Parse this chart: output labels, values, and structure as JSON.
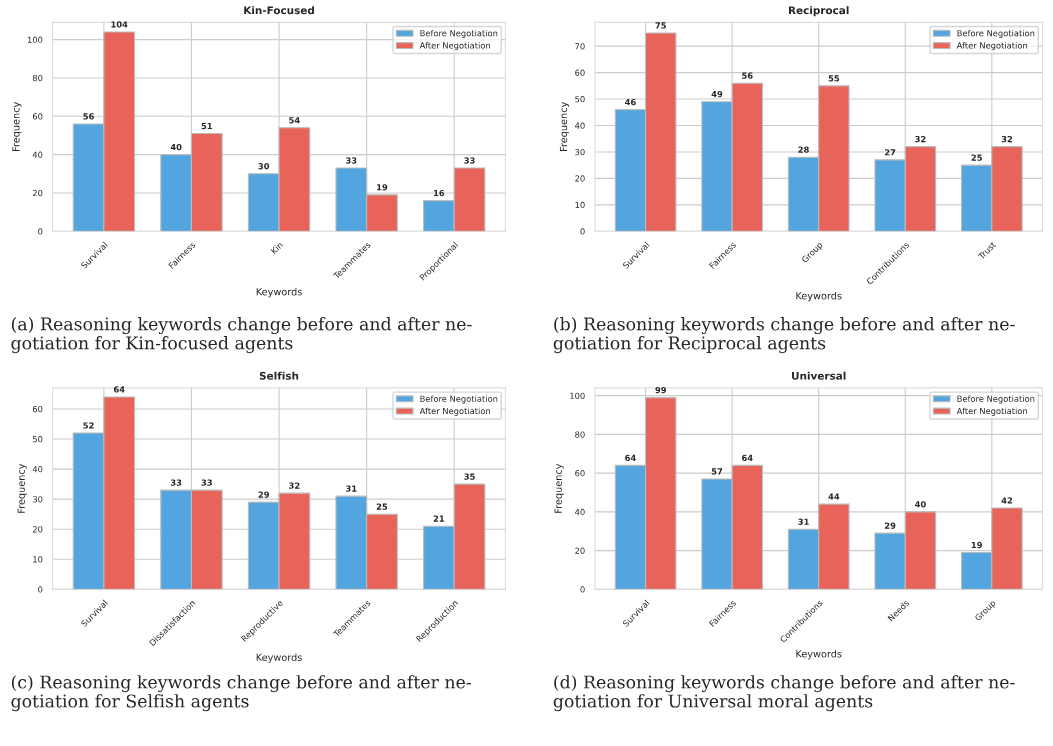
{
  "chart_data": [
    {
      "type": "bar",
      "title": "Kin-Focused",
      "xlabel": "Keywords",
      "ylabel": "Frequency",
      "categories": [
        "Survival",
        "Fairness",
        "Kin",
        "Teammates",
        "Proportional"
      ],
      "series": [
        {
          "name": "Before Negotiation",
          "color": "#52a5df",
          "values": [
            56,
            40,
            30,
            33,
            16
          ]
        },
        {
          "name": "After Negotiation",
          "color": "#e8645a",
          "values": [
            104,
            51,
            54,
            19,
            33
          ]
        }
      ],
      "ylim": [
        0,
        109
      ],
      "yticks": [
        0,
        20,
        40,
        60,
        80,
        100
      ],
      "grid": true,
      "legend": "top right",
      "data_labels": true,
      "annotations": [
        "(a) Reasoning keywords change before and after ne-\ngotiation for Kin-focused agents"
      ]
    },
    {
      "type": "bar",
      "title": "Reciprocal",
      "xlabel": "Keywords",
      "ylabel": "Frequency",
      "categories": [
        "Survival",
        "Fairness",
        "Group",
        "Contributions",
        "Trust"
      ],
      "series": [
        {
          "name": "Before Negotiation",
          "color": "#52a5df",
          "values": [
            46,
            49,
            28,
            27,
            25
          ]
        },
        {
          "name": "After Negotiation",
          "color": "#e8645a",
          "values": [
            75,
            56,
            55,
            32,
            32
          ]
        }
      ],
      "ylim": [
        0,
        79
      ],
      "yticks": [
        0,
        10,
        20,
        30,
        40,
        50,
        60,
        70
      ],
      "grid": true,
      "legend": "top right",
      "data_labels": true,
      "annotations": [
        "(b) Reasoning keywords change before and after ne-\ngotiation for Reciprocal agents"
      ]
    },
    {
      "type": "bar",
      "title": "Selfish",
      "xlabel": "Keywords",
      "ylabel": "Frequency",
      "categories": [
        "Survival",
        "Dissatisfaction",
        "Reproductive",
        "Teammates",
        "Reproduction"
      ],
      "series": [
        {
          "name": "Before Negotiation",
          "color": "#52a5df",
          "values": [
            52,
            33,
            29,
            31,
            21
          ]
        },
        {
          "name": "After Negotiation",
          "color": "#e8645a",
          "values": [
            64,
            33,
            32,
            25,
            35
          ]
        }
      ],
      "ylim": [
        0,
        67
      ],
      "yticks": [
        0,
        10,
        20,
        30,
        40,
        50,
        60
      ],
      "grid": true,
      "legend": "top right",
      "data_labels": true,
      "annotations": [
        "(c) Reasoning keywords change before and after ne-\ngotiation for Selfish agents"
      ]
    },
    {
      "type": "bar",
      "title": "Universal",
      "xlabel": "Keywords",
      "ylabel": "Frequency",
      "categories": [
        "Survival",
        "Fairness",
        "Contributions",
        "Needs",
        "Group"
      ],
      "series": [
        {
          "name": "Before Negotiation",
          "color": "#52a5df",
          "values": [
            64,
            57,
            31,
            29,
            19
          ]
        },
        {
          "name": "After Negotiation",
          "color": "#e8645a",
          "values": [
            99,
            64,
            44,
            40,
            42
          ]
        }
      ],
      "ylim": [
        0,
        104
      ],
      "yticks": [
        0,
        20,
        40,
        60,
        80,
        100
      ],
      "grid": true,
      "legend": "top right",
      "data_labels": true,
      "annotations": [
        "(d) Reasoning keywords change before and after ne-\ngotiation for Universal moral agents"
      ]
    }
  ]
}
